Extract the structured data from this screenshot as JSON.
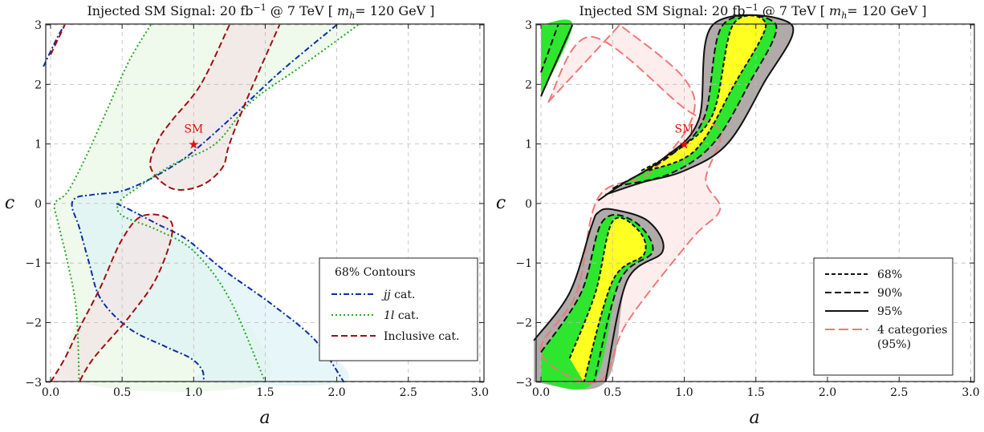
{
  "chart_data": [
    {
      "type": "line",
      "title_main": "Injected SM Signal: 20 fb",
      "title_sup": "−1",
      "title_mid": " @ 7 TeV [ ",
      "title_m": "m",
      "title_sub": "h",
      "title_end": "= 120 GeV ]",
      "xlabel": "a",
      "ylabel": "c",
      "xlim": [
        0,
        3
      ],
      "ylim": [
        -3,
        3
      ],
      "x_ticks": [
        "0.0",
        "0.5",
        "1.0",
        "1.5",
        "2.0",
        "2.5",
        "3.0"
      ],
      "y_ticks": [
        "3",
        "2",
        "1",
        "0",
        "−1",
        "−2",
        "−3"
      ],
      "grid": true,
      "legend_title": "68% Contours",
      "legend_placement": "bottom-right",
      "annotation": {
        "text": "SM",
        "a": 1.0,
        "c": 1.0
      },
      "series": [
        {
          "name_italic": "jj",
          "name_rest": " cat.",
          "color": "#0a2fa0",
          "dash": "dashdot",
          "contours": [
            [
              [
                -0.05,
                2.3
              ],
              [
                0.05,
                2.8
              ],
              [
                0.1,
                3
              ]
            ],
            [
              [
                2.0,
                3
              ],
              [
                1.6,
                2.2
              ],
              [
                1.2,
                1.3
              ],
              [
                0.9,
                0.7
              ],
              [
                0.55,
                0.25
              ],
              [
                0.3,
                0.15
              ],
              [
                0.18,
                0.1
              ],
              [
                0.15,
                -0.05
              ],
              [
                0.2,
                -0.4
              ],
              [
                0.27,
                -1
              ],
              [
                0.35,
                -1.6
              ],
              [
                0.55,
                -2.1
              ],
              [
                0.8,
                -2.4
              ],
              [
                0.98,
                -2.6
              ],
              [
                1.06,
                -2.8
              ],
              [
                1.07,
                -3
              ]
            ],
            [
              [
                0.46,
                0
              ],
              [
                0.55,
                -0.1
              ],
              [
                0.75,
                -0.35
              ],
              [
                0.95,
                -0.6
              ],
              [
                1.2,
                -1.1
              ],
              [
                1.55,
                -1.7
              ],
              [
                1.85,
                -2.3
              ],
              [
                2.05,
                -3
              ]
            ]
          ]
        },
        {
          "name_italic": "1l",
          "name_rest": " cat.",
          "color": "#22aa22",
          "dash": "dotted",
          "contours": [
            [
              [
                0.7,
                3
              ],
              [
                0.55,
                2.4
              ],
              [
                0.4,
                1.6
              ],
              [
                0.25,
                0.8
              ],
              [
                0.12,
                0.2
              ],
              [
                0.03,
                0.0
              ],
              [
                0.05,
                -0.3
              ],
              [
                0.12,
                -1.0
              ],
              [
                0.18,
                -1.8
              ],
              [
                0.2,
                -3
              ]
            ],
            [
              [
                2.15,
                3
              ],
              [
                1.75,
                2.3
              ],
              [
                1.4,
                1.7
              ],
              [
                1.15,
                1.0
              ],
              [
                0.85,
                0.65
              ],
              [
                0.6,
                0.25
              ],
              [
                0.48,
                0.02
              ],
              [
                0.5,
                -0.2
              ],
              [
                0.75,
                -0.45
              ],
              [
                1.0,
                -0.8
              ],
              [
                1.25,
                -1.6
              ],
              [
                1.5,
                -3
              ]
            ]
          ]
        },
        {
          "name_italic": "",
          "name_rest": "Inclusive cat.",
          "color": "#a01010",
          "dash": "dashed",
          "contours": [
            [
              [
                0.0,
                2.5
              ],
              [
                0.1,
                3
              ]
            ],
            [
              [
                1.25,
                3
              ],
              [
                1.05,
                2.0
              ],
              [
                0.85,
                1.4
              ],
              [
                0.75,
                1.05
              ],
              [
                0.7,
                0.6
              ],
              [
                0.85,
                0.25
              ],
              [
                1.05,
                0.3
              ],
              [
                1.2,
                0.6
              ],
              [
                1.25,
                1.0
              ],
              [
                1.38,
                1.8
              ],
              [
                1.6,
                3
              ]
            ],
            [
              [
                0.0,
                -3
              ],
              [
                0.1,
                -2.6
              ],
              [
                0.2,
                -2.1
              ],
              [
                0.35,
                -1.4
              ],
              [
                0.5,
                -0.6
              ],
              [
                0.65,
                -0.2
              ],
              [
                0.85,
                -0.35
              ],
              [
                0.75,
                -1.2
              ],
              [
                0.55,
                -1.9
              ],
              [
                0.3,
                -2.6
              ],
              [
                0.2,
                -3
              ]
            ]
          ]
        }
      ]
    },
    {
      "type": "area",
      "title_main": "Injected SM Signal: 20 fb",
      "title_sup": "−1",
      "title_mid": " @ 7 TeV [ ",
      "title_m": "m",
      "title_sub": "h",
      "title_end": "= 120 GeV ]",
      "xlabel": "a",
      "ylabel": "c",
      "xlim": [
        0,
        3
      ],
      "ylim": [
        -3,
        3
      ],
      "x_ticks": [
        "0.0",
        "0.5",
        "1.0",
        "1.5",
        "2.0",
        "2.5",
        "3.0"
      ],
      "y_ticks": [
        "3",
        "2",
        "1",
        "0",
        "−1",
        "−2",
        "−3"
      ],
      "grid": true,
      "legend_placement": "bottom-right",
      "annotation": {
        "text": "SM",
        "a": 1.0,
        "c": 1.0
      },
      "levels": [
        {
          "name": "68%",
          "color": "#111111",
          "dash": "fine-dashed",
          "fill": "#ffff22"
        },
        {
          "name": "90%",
          "color": "#111111",
          "dash": "dashed",
          "fill": "#2ee62e"
        },
        {
          "name": "95%",
          "color": "#111111",
          "dash": "solid",
          "fill": "#b0aaa8"
        }
      ],
      "extra": {
        "name_line1": "4 categories",
        "name_line2": "(95%)",
        "color": "#f07878",
        "dash": "long-dashed"
      },
      "regions": {
        "upper": {
          "l95": [
            [
              0.4,
              0.05
            ],
            [
              0.55,
              0.3
            ],
            [
              0.85,
              0.75
            ],
            [
              1.1,
              1.4
            ],
            [
              1.2,
              3
            ]
          ],
          "r95": [
            [
              1.75,
              3
            ],
            [
              1.55,
              2.0
            ],
            [
              1.3,
              1.0
            ],
            [
              1.0,
              0.55
            ],
            [
              0.7,
              0.35
            ],
            [
              0.45,
              0.15
            ]
          ],
          "l90": [
            [
              0.5,
              0.25
            ],
            [
              0.9,
              0.8
            ],
            [
              1.14,
              1.45
            ],
            [
              1.27,
              3
            ]
          ],
          "r90": [
            [
              1.64,
              3
            ],
            [
              1.45,
              2.0
            ],
            [
              1.2,
              1.0
            ],
            [
              0.9,
              0.5
            ],
            [
              0.55,
              0.3
            ]
          ],
          "l68": [
            [
              0.7,
              0.55
            ],
            [
              0.95,
              0.9
            ],
            [
              1.2,
              1.5
            ],
            [
              1.34,
              3
            ]
          ],
          "r68": [
            [
              1.57,
              3
            ],
            [
              1.35,
              2.0
            ],
            [
              1.08,
              0.9
            ],
            [
              0.75,
              0.55
            ]
          ]
        },
        "lower": {
          "l95": [
            [
              -0.05,
              -2.3
            ],
            [
              0.2,
              -1.5
            ],
            [
              0.35,
              -0.4
            ],
            [
              0.4,
              -0.15
            ],
            [
              0.5,
              -0.1
            ],
            [
              0.75,
              -0.3
            ],
            [
              0.85,
              -0.8
            ],
            [
              0.6,
              -1.3
            ],
            [
              0.45,
              -3
            ]
          ],
          "l90": [
            [
              0.0,
              -2.5
            ],
            [
              0.28,
              -1.5
            ],
            [
              0.43,
              -0.3
            ],
            [
              0.65,
              -0.3
            ],
            [
              0.78,
              -0.8
            ],
            [
              0.55,
              -1.3
            ],
            [
              0.37,
              -3
            ]
          ],
          "l68": [
            [
              0.2,
              -2.6
            ],
            [
              0.38,
              -1.5
            ],
            [
              0.5,
              -0.3
            ],
            [
              0.68,
              -0.45
            ],
            [
              0.72,
              -0.85
            ],
            [
              0.5,
              -1.3
            ],
            [
              0.3,
              -3
            ]
          ]
        },
        "corner": {
          "outer": [
            [
              0.0,
              1.8
            ],
            [
              0.22,
              3
            ]
          ],
          "inner": [
            [
              0.0,
              2.2
            ],
            [
              0.12,
              3
            ]
          ]
        },
        "four_cat": [
          [
            0.05,
            1.7
          ],
          [
            0.35,
            2.8
          ],
          [
            1.0,
            1.6
          ],
          [
            1.25,
            1.2
          ],
          [
            1.15,
            0.4
          ],
          [
            1.25,
            -0.1
          ],
          [
            1.05,
            -0.6
          ],
          [
            0.6,
            -2.0
          ],
          [
            0.4,
            -3
          ],
          [
            0.0,
            -2.5
          ],
          [
            0.25,
            -1.5
          ],
          [
            0.4,
            0.1
          ],
          [
            0.75,
            0.5
          ],
          [
            1.05,
            1.4
          ],
          [
            1.0,
            2.1
          ],
          [
            0.55,
            3
          ]
        ]
      }
    }
  ]
}
